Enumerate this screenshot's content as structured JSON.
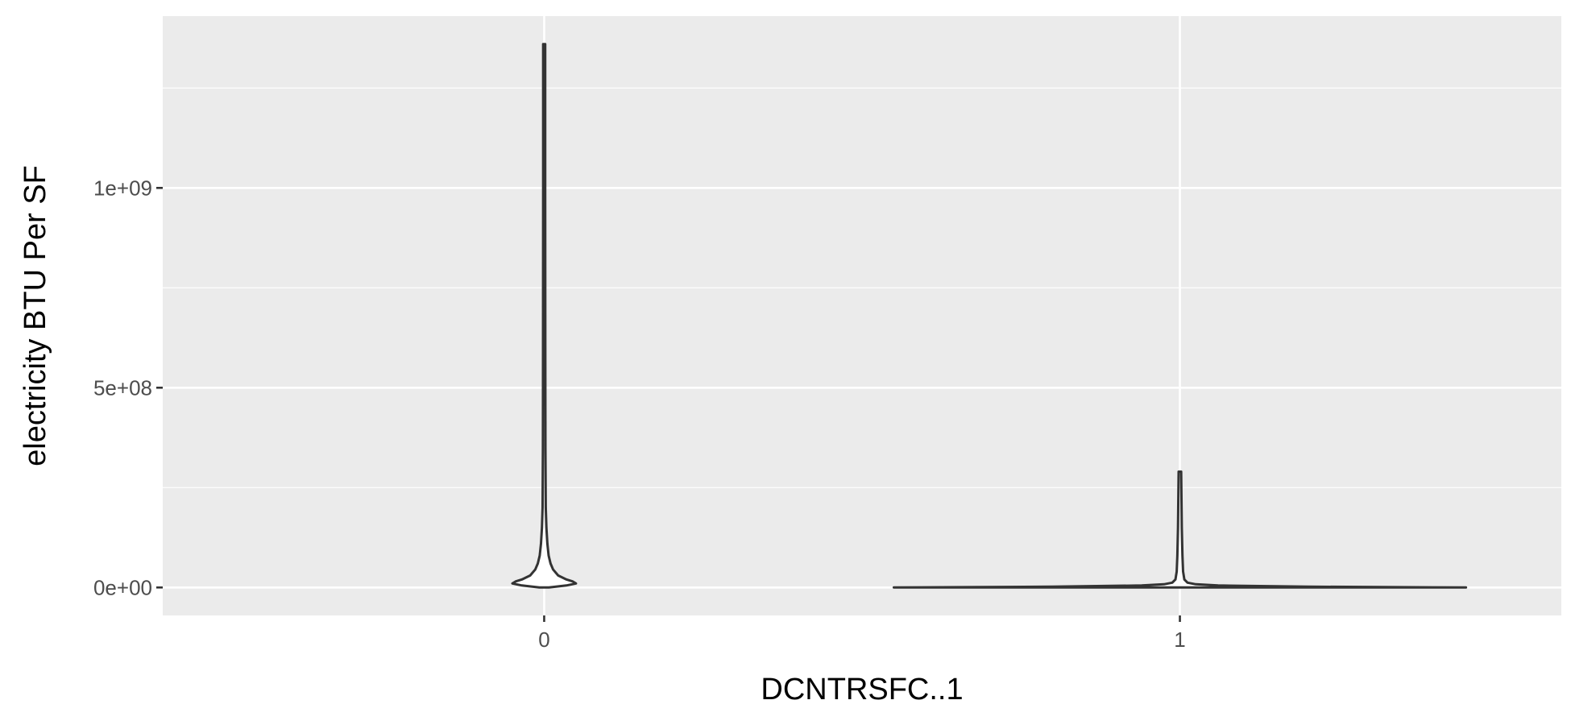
{
  "chart_data": {
    "type": "violin",
    "xlabel": "DCNTRSFC..1",
    "ylabel": "electricity BTU Per SF",
    "ylim": [
      -70000000,
      1430000000
    ],
    "y_ticks": [
      0,
      500000000,
      1000000000
    ],
    "y_tick_labels": [
      "0e+00",
      "5e+08",
      "1e+09"
    ],
    "categories": [
      "0",
      "1"
    ],
    "groups": [
      {
        "category": "0",
        "max": 1360000000,
        "outline": [
          [
            0,
            0.0075
          ],
          [
            5000000,
            0.035
          ],
          [
            10000000,
            0.05
          ],
          [
            15000000,
            0.045
          ],
          [
            20000000,
            0.035
          ],
          [
            30000000,
            0.022
          ],
          [
            45000000,
            0.014
          ],
          [
            60000000,
            0.01
          ],
          [
            80000000,
            0.007
          ],
          [
            110000000,
            0.005
          ],
          [
            150000000,
            0.0035
          ],
          [
            200000000,
            0.0025
          ],
          [
            350000000,
            0.002
          ],
          [
            600000000,
            0.0018
          ],
          [
            1000000000,
            0.0016
          ],
          [
            1360000000,
            0.0016
          ]
        ]
      },
      {
        "category": "1",
        "max": 290000000,
        "outline": [
          [
            0,
            0.45
          ],
          [
            2000000,
            0.2
          ],
          [
            5000000,
            0.06
          ],
          [
            8000000,
            0.025
          ],
          [
            12000000,
            0.012
          ],
          [
            20000000,
            0.007
          ],
          [
            40000000,
            0.005
          ],
          [
            80000000,
            0.004
          ],
          [
            150000000,
            0.003
          ],
          [
            290000000,
            0.002
          ]
        ]
      }
    ],
    "colors": {
      "panel": "#ebebeb",
      "grid": "#ffffff",
      "violin_line": "#333333",
      "violin_fill": "#ffffff"
    }
  }
}
